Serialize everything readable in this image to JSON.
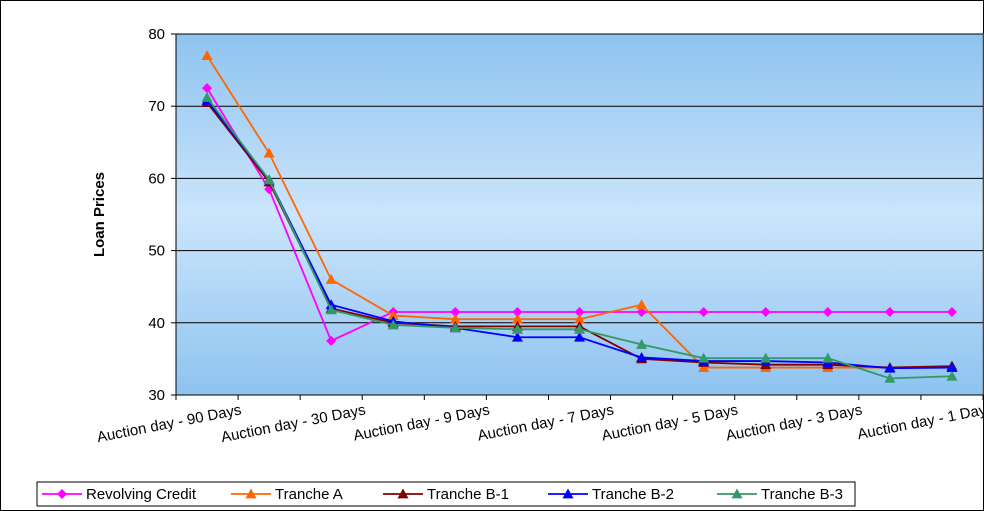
{
  "chart_data": {
    "type": "line",
    "title": "",
    "xlabel": "",
    "ylabel": "Loan Prices",
    "ylim": [
      30,
      80
    ],
    "yticks": [
      30,
      40,
      50,
      60,
      70,
      80
    ],
    "grid": "horizontal",
    "legend_position": "bottom",
    "categories": [
      "Auction day - 90 Days",
      "",
      "Auction day - 30 Days",
      "",
      "Auction day - 9 Days",
      "",
      "Auction day - 7 Days",
      "",
      "Auction day - 5 Days",
      "",
      "Auction day - 3 Days",
      "",
      "Auction day - 1 Day"
    ],
    "category_labels_shown": [
      "Auction day - 90 Days",
      "Auction day - 30 Days",
      "Auction day - 9 Days",
      "Auction day - 7 Days",
      "Auction day - 5 Days",
      "Auction day - 3 Days",
      "Auction day - 1 Day"
    ],
    "series": [
      {
        "name": "Revolving Credit",
        "color": "#ff00ff",
        "marker": "diamond",
        "values": [
          72.5,
          58.5,
          37.5,
          41.5,
          41.5,
          41.5,
          41.5,
          41.5,
          41.5,
          41.5,
          41.5,
          41.5,
          41.5
        ]
      },
      {
        "name": "Tranche A",
        "color": "#ff6600",
        "marker": "triangle",
        "values": [
          77,
          63.5,
          46,
          41,
          40.5,
          40.5,
          40.5,
          42.5,
          33.8,
          33.8,
          33.8,
          33.8,
          33.8
        ]
      },
      {
        "name": "Tranche B-1",
        "color": "#800000",
        "marker": "triangle",
        "values": [
          70.5,
          59.5,
          42,
          40,
          39.5,
          39.5,
          39.5,
          35,
          34.5,
          34.2,
          34.2,
          33.8,
          34
        ]
      },
      {
        "name": "Tranche B-2",
        "color": "#0000ff",
        "marker": "triangle",
        "values": [
          70.8,
          59.8,
          42.5,
          40.2,
          39.3,
          38,
          38,
          35.2,
          34.7,
          34.7,
          34.5,
          33.7,
          33.8
        ]
      },
      {
        "name": "Tranche B-3",
        "color": "#339966",
        "marker": "triangle",
        "values": [
          71.2,
          59.8,
          41.8,
          39.7,
          39.3,
          39.1,
          39.1,
          37,
          35.1,
          35.1,
          35.1,
          32.3,
          32.6
        ]
      }
    ]
  }
}
